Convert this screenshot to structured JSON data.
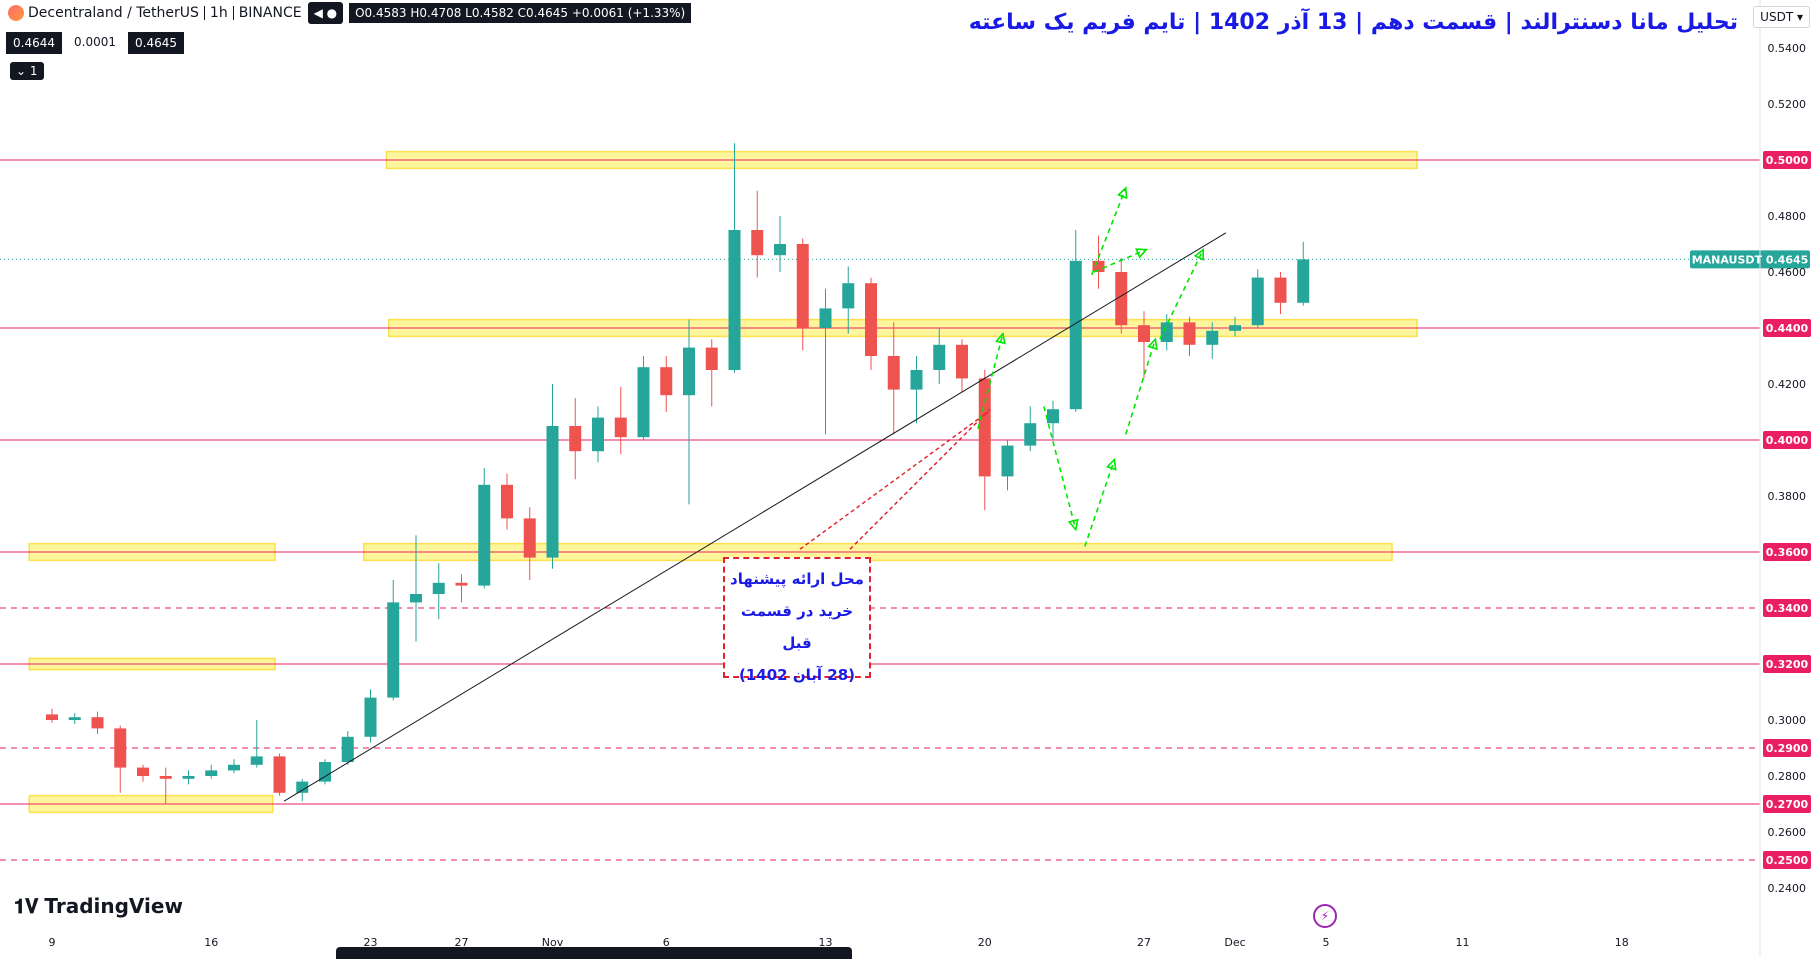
{
  "header": {
    "symbol": "Decentraland / TetherUS",
    "interval": "1h",
    "exchange": "BINANCE",
    "ohlc": "O0.4583 H0.4708 L0.4582 C0.4645 +0.0061 (+1.33%)",
    "bid": "0.4644",
    "spread": "0.0001",
    "ask": "0.4645",
    "indicator_count": "1",
    "currency": "USDT"
  },
  "title": "تحلیل مانا دسنترالند | قسمت دهم | 13 آذر 1402 | تایم فریم یک ساعته",
  "note_lines": [
    "محل ارائه پیشنهاد",
    "خرید در قسمت قبل",
    "(28 آبان 1402)"
  ],
  "brand": "TradingView",
  "colors": {
    "up": "#26a69a",
    "down": "#ef5350",
    "level_line": "#e91e63",
    "zone_fill": "#fff59d",
    "zone_stroke": "#f9e04c",
    "arrow": "#00e600",
    "trend": "#131722",
    "note": "#1a1ae6",
    "accent_dashed": "#e0242f"
  },
  "chart_data": {
    "type": "candlestick",
    "symbol": "MANAUSDT",
    "last_price": 0.4645,
    "ylim": [
      0.23,
      0.55
    ],
    "y_ticks": [
      0.24,
      0.26,
      0.28,
      0.3,
      0.38,
      0.42,
      0.46,
      0.48,
      0.52,
      0.54
    ],
    "x_ticks": [
      {
        "label": "9",
        "idx": 0
      },
      {
        "label": "16",
        "idx": 7
      },
      {
        "label": "23",
        "idx": 14
      },
      {
        "label": "27",
        "idx": 18
      },
      {
        "label": "Nov",
        "idx": 22
      },
      {
        "label": "6",
        "idx": 27
      },
      {
        "label": "13",
        "idx": 34
      },
      {
        "label": "20",
        "idx": 41
      },
      {
        "label": "27",
        "idx": 48
      },
      {
        "label": "Dec",
        "idx": 52
      },
      {
        "label": "5",
        "idx": 56
      },
      {
        "label": "11",
        "idx": 62
      },
      {
        "label": "18",
        "idx": 69
      }
    ],
    "levels": [
      {
        "price": 0.5,
        "style": "solid"
      },
      {
        "price": 0.44,
        "style": "solid"
      },
      {
        "price": 0.4,
        "style": "solid"
      },
      {
        "price": 0.36,
        "style": "solid"
      },
      {
        "price": 0.34,
        "style": "dashed"
      },
      {
        "price": 0.32,
        "style": "solid"
      },
      {
        "price": 0.29,
        "style": "dashed"
      },
      {
        "price": 0.27,
        "style": "solid"
      },
      {
        "price": 0.25,
        "style": "dashed"
      }
    ],
    "zones": [
      {
        "from_idx": 14.7,
        "to_idx": 60.0,
        "low": 0.497,
        "high": 0.503
      },
      {
        "from_idx": 14.8,
        "to_idx": 60.0,
        "low": 0.437,
        "high": 0.443
      },
      {
        "from_idx": 13.7,
        "to_idx": 58.9,
        "low": 0.357,
        "high": 0.363
      },
      {
        "from_idx": -1.0,
        "to_idx": 9.8,
        "low": 0.357,
        "high": 0.363
      },
      {
        "from_idx": -1.0,
        "to_idx": 9.8,
        "low": 0.318,
        "high": 0.322
      },
      {
        "from_idx": -1.0,
        "to_idx": 9.7,
        "low": 0.267,
        "high": 0.273
      }
    ],
    "trendline": {
      "from": {
        "idx": 10.2,
        "price": 0.271
      },
      "to": {
        "idx": 51.6,
        "price": 0.474
      }
    },
    "candles": [
      {
        "o": 0.302,
        "h": 0.304,
        "l": 0.299,
        "c": 0.3
      },
      {
        "o": 0.3,
        "h": 0.3025,
        "l": 0.2985,
        "c": 0.301
      },
      {
        "o": 0.301,
        "h": 0.303,
        "l": 0.295,
        "c": 0.297
      },
      {
        "o": 0.297,
        "h": 0.298,
        "l": 0.274,
        "c": 0.283
      },
      {
        "o": 0.283,
        "h": 0.284,
        "l": 0.278,
        "c": 0.28
      },
      {
        "o": 0.28,
        "h": 0.283,
        "l": 0.27,
        "c": 0.279
      },
      {
        "o": 0.279,
        "h": 0.282,
        "l": 0.277,
        "c": 0.28
      },
      {
        "o": 0.28,
        "h": 0.284,
        "l": 0.279,
        "c": 0.282
      },
      {
        "o": 0.282,
        "h": 0.286,
        "l": 0.281,
        "c": 0.284
      },
      {
        "o": 0.284,
        "h": 0.3,
        "l": 0.283,
        "c": 0.287
      },
      {
        "o": 0.287,
        "h": 0.288,
        "l": 0.273,
        "c": 0.274
      },
      {
        "o": 0.274,
        "h": 0.279,
        "l": 0.271,
        "c": 0.278
      },
      {
        "o": 0.278,
        "h": 0.286,
        "l": 0.277,
        "c": 0.285
      },
      {
        "o": 0.285,
        "h": 0.296,
        "l": 0.284,
        "c": 0.294
      },
      {
        "o": 0.294,
        "h": 0.311,
        "l": 0.292,
        "c": 0.308
      },
      {
        "o": 0.308,
        "h": 0.35,
        "l": 0.307,
        "c": 0.342
      },
      {
        "o": 0.342,
        "h": 0.366,
        "l": 0.328,
        "c": 0.345
      },
      {
        "o": 0.345,
        "h": 0.356,
        "l": 0.336,
        "c": 0.349
      },
      {
        "o": 0.349,
        "h": 0.352,
        "l": 0.342,
        "c": 0.348
      },
      {
        "o": 0.348,
        "h": 0.39,
        "l": 0.347,
        "c": 0.384
      },
      {
        "o": 0.384,
        "h": 0.388,
        "l": 0.368,
        "c": 0.372
      },
      {
        "o": 0.372,
        "h": 0.376,
        "l": 0.35,
        "c": 0.358
      },
      {
        "o": 0.358,
        "h": 0.42,
        "l": 0.354,
        "c": 0.405
      },
      {
        "o": 0.405,
        "h": 0.415,
        "l": 0.386,
        "c": 0.396
      },
      {
        "o": 0.396,
        "h": 0.412,
        "l": 0.392,
        "c": 0.408
      },
      {
        "o": 0.408,
        "h": 0.419,
        "l": 0.395,
        "c": 0.401
      },
      {
        "o": 0.401,
        "h": 0.43,
        "l": 0.4,
        "c": 0.426
      },
      {
        "o": 0.426,
        "h": 0.43,
        "l": 0.41,
        "c": 0.416
      },
      {
        "o": 0.416,
        "h": 0.443,
        "l": 0.377,
        "c": 0.433
      },
      {
        "o": 0.433,
        "h": 0.436,
        "l": 0.412,
        "c": 0.425
      },
      {
        "o": 0.425,
        "h": 0.506,
        "l": 0.424,
        "c": 0.475
      },
      {
        "o": 0.475,
        "h": 0.489,
        "l": 0.458,
        "c": 0.466
      },
      {
        "o": 0.466,
        "h": 0.48,
        "l": 0.46,
        "c": 0.47
      },
      {
        "o": 0.47,
        "h": 0.472,
        "l": 0.432,
        "c": 0.44
      },
      {
        "o": 0.44,
        "h": 0.454,
        "l": 0.402,
        "c": 0.447
      },
      {
        "o": 0.447,
        "h": 0.462,
        "l": 0.438,
        "c": 0.456
      },
      {
        "o": 0.456,
        "h": 0.458,
        "l": 0.425,
        "c": 0.43
      },
      {
        "o": 0.43,
        "h": 0.442,
        "l": 0.402,
        "c": 0.418
      },
      {
        "o": 0.418,
        "h": 0.43,
        "l": 0.406,
        "c": 0.425
      },
      {
        "o": 0.425,
        "h": 0.44,
        "l": 0.42,
        "c": 0.434
      },
      {
        "o": 0.434,
        "h": 0.436,
        "l": 0.417,
        "c": 0.422
      },
      {
        "o": 0.422,
        "h": 0.425,
        "l": 0.375,
        "c": 0.387
      },
      {
        "o": 0.387,
        "h": 0.4,
        "l": 0.382,
        "c": 0.398
      },
      {
        "o": 0.398,
        "h": 0.412,
        "l": 0.396,
        "c": 0.406
      },
      {
        "o": 0.406,
        "h": 0.414,
        "l": 0.4,
        "c": 0.411
      },
      {
        "o": 0.411,
        "h": 0.475,
        "l": 0.41,
        "c": 0.464
      },
      {
        "o": 0.464,
        "h": 0.473,
        "l": 0.454,
        "c": 0.46
      },
      {
        "o": 0.46,
        "h": 0.465,
        "l": 0.438,
        "c": 0.441
      },
      {
        "o": 0.441,
        "h": 0.446,
        "l": 0.422,
        "c": 0.435
      },
      {
        "o": 0.435,
        "h": 0.445,
        "l": 0.432,
        "c": 0.442
      },
      {
        "o": 0.442,
        "h": 0.444,
        "l": 0.43,
        "c": 0.434
      },
      {
        "o": 0.434,
        "h": 0.442,
        "l": 0.429,
        "c": 0.439
      },
      {
        "o": 0.439,
        "h": 0.444,
        "l": 0.437,
        "c": 0.441
      },
      {
        "o": 0.441,
        "h": 0.461,
        "l": 0.44,
        "c": 0.458
      },
      {
        "o": 0.458,
        "h": 0.46,
        "l": 0.445,
        "c": 0.449
      },
      {
        "o": 0.449,
        "h": 0.4708,
        "l": 0.448,
        "c": 0.4645
      }
    ],
    "arrows": [
      {
        "x1": 45.7,
        "y1": 0.459,
        "x2": 47.2,
        "y2": 0.49
      },
      {
        "x1": 45.8,
        "y1": 0.46,
        "x2": 48.1,
        "y2": 0.468
      },
      {
        "x1": 43.6,
        "y1": 0.412,
        "x2": 45.0,
        "y2": 0.368
      },
      {
        "x1": 45.4,
        "y1": 0.362,
        "x2": 46.7,
        "y2": 0.393
      },
      {
        "x1": 47.2,
        "y1": 0.402,
        "x2": 48.5,
        "y2": 0.436
      },
      {
        "x1": 48.7,
        "y1": 0.436,
        "x2": 50.6,
        "y2": 0.468
      },
      {
        "x1": 40.7,
        "y1": 0.404,
        "x2": 41.8,
        "y2": 0.438
      }
    ]
  }
}
